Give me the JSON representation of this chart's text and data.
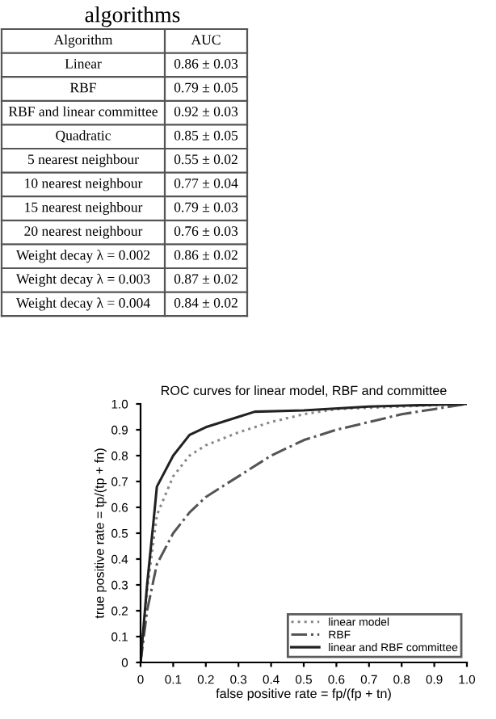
{
  "chart_data": [
    {
      "type": "other",
      "title": "algorithms",
      "categories": [
        "Algorithm",
        "Linear",
        "RBF",
        "RBF and linear committee",
        "Quadratic",
        "5 nearest neighbour",
        "10 nearest neighbour",
        "15 nearest neighbour",
        "20 nearest neighbour",
        "Weight decay λ = 0.002",
        "Weight decay λ = 0.003",
        "Weight decay λ = 0.004"
      ],
      "annotations": [
        "AUC",
        "0.86 ± 0.03",
        "0.79 ± 0.05",
        "0.92 ± 0.03",
        "0.85 ± 0.05",
        "0.55 ± 0.02",
        "0.77 ± 0.04",
        "0.79 ± 0.03",
        "0.76 ± 0.03",
        "0.86 ± 0.02",
        "0.87 ± 0.02",
        "0.84 ± 0.02"
      ]
    },
    {
      "type": "line",
      "title": "ROC curves for linear model, RBF and committee",
      "xlabel": "false positive rate = fp/(fp + tn)",
      "ylabel": "true positive rate = tp/(tp + fn)",
      "xlim": [
        0,
        1
      ],
      "ylim": [
        0,
        1
      ],
      "xticks": [
        {
          "value": 0,
          "label": "0"
        },
        0.1,
        0.2,
        0.3,
        0.4,
        0.5,
        0.6,
        0.7,
        0.8,
        0.9,
        {
          "value": 1,
          "label": "1.0"
        }
      ],
      "yticks": [
        {
          "value": 0,
          "label": "0"
        },
        0.1,
        0.2,
        0.3,
        0.4,
        0.5,
        0.6,
        0.7,
        0.8,
        0.9,
        {
          "value": 1,
          "label": "1.0"
        }
      ],
      "grid": false,
      "legend": "bottom right",
      "series": [
        {
          "name": "linear model",
          "color": "#888888",
          "line_style": "dotted",
          "x": [
            0,
            0.02,
            0.05,
            0.1,
            0.15,
            0.2,
            0.3,
            0.4,
            0.5,
            0.6,
            0.8,
            1
          ],
          "values": [
            0,
            0.28,
            0.57,
            0.72,
            0.8,
            0.84,
            0.89,
            0.93,
            0.96,
            0.98,
            0.99,
            1
          ]
        },
        {
          "name": "RBF",
          "color": "#555555",
          "line_style": "dashdot",
          "x": [
            0,
            0.02,
            0.05,
            0.1,
            0.15,
            0.2,
            0.3,
            0.4,
            0.5,
            0.6,
            0.7,
            0.8,
            0.9,
            1
          ],
          "values": [
            0,
            0.2,
            0.38,
            0.5,
            0.58,
            0.64,
            0.72,
            0.8,
            0.86,
            0.9,
            0.93,
            0.96,
            0.98,
            1
          ]
        },
        {
          "name": "linear and RBF committee",
          "color": "#222222",
          "line_style": "solid",
          "x": [
            0,
            0.02,
            0.04,
            0.05,
            0.1,
            0.15,
            0.2,
            0.3,
            0.35,
            0.5,
            0.7,
            1
          ],
          "values": [
            0,
            0.3,
            0.55,
            0.68,
            0.8,
            0.88,
            0.91,
            0.95,
            0.97,
            0.975,
            0.99,
            1
          ]
        }
      ]
    }
  ]
}
